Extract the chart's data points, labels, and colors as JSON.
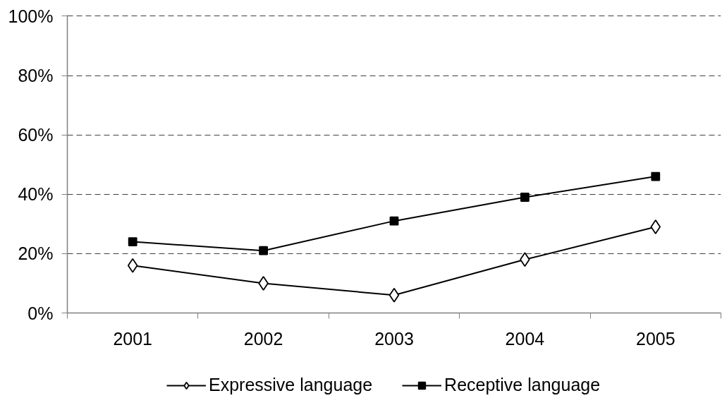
{
  "chart_data": {
    "type": "line",
    "categories": [
      "2001",
      "2002",
      "2003",
      "2004",
      "2005"
    ],
    "series": [
      {
        "name": "Expressive language",
        "color": "#000000",
        "marker": "diamond",
        "values": [
          16,
          10,
          6,
          18,
          29
        ]
      },
      {
        "name": "Receptive language",
        "color": "#000000",
        "marker": "square",
        "values": [
          24,
          21,
          31,
          39,
          46
        ]
      }
    ],
    "ylim": [
      0,
      100
    ],
    "yticks": [
      {
        "value": 0,
        "label": "0%"
      },
      {
        "value": 20,
        "label": "20%"
      },
      {
        "value": 40,
        "label": "40%"
      },
      {
        "value": 60,
        "label": "60%"
      },
      {
        "value": 80,
        "label": "80%"
      },
      {
        "value": 100,
        "label": "100%"
      }
    ],
    "grid": "y",
    "legend": "bottom",
    "line_style": "solid"
  }
}
